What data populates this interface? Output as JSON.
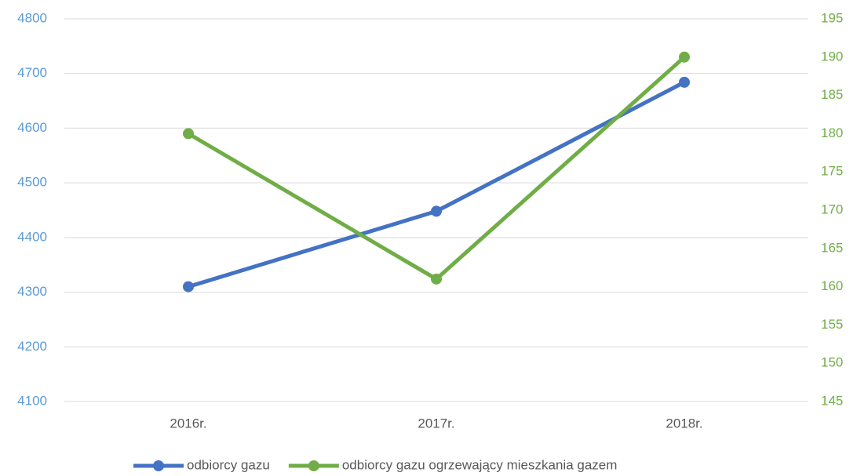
{
  "chart_data": {
    "type": "line",
    "categories": [
      "2016r.",
      "2017r.",
      "2018r."
    ],
    "series": [
      {
        "name": "odbiorcy gazu",
        "color": "#4472c4",
        "values": [
          4310,
          4448,
          4684
        ]
      },
      {
        "name": "odbiorcy gazu ogrzewający mieszkania gazem",
        "color": "#70ad47",
        "values": [
          180,
          161,
          190
        ],
        "axis": "y2"
      }
    ],
    "ylim": [
      4100,
      4800
    ],
    "yticks": [
      4100,
      4200,
      4300,
      4400,
      4500,
      4600,
      4700,
      4800
    ],
    "y2lim": [
      145,
      195
    ],
    "y2ticks": [
      145,
      150,
      155,
      160,
      165,
      170,
      175,
      180,
      185,
      190,
      195
    ],
    "ylabel_color": "#5b9bd5",
    "y2label_color": "#70ad47",
    "grid": true,
    "legend": "bottom"
  }
}
